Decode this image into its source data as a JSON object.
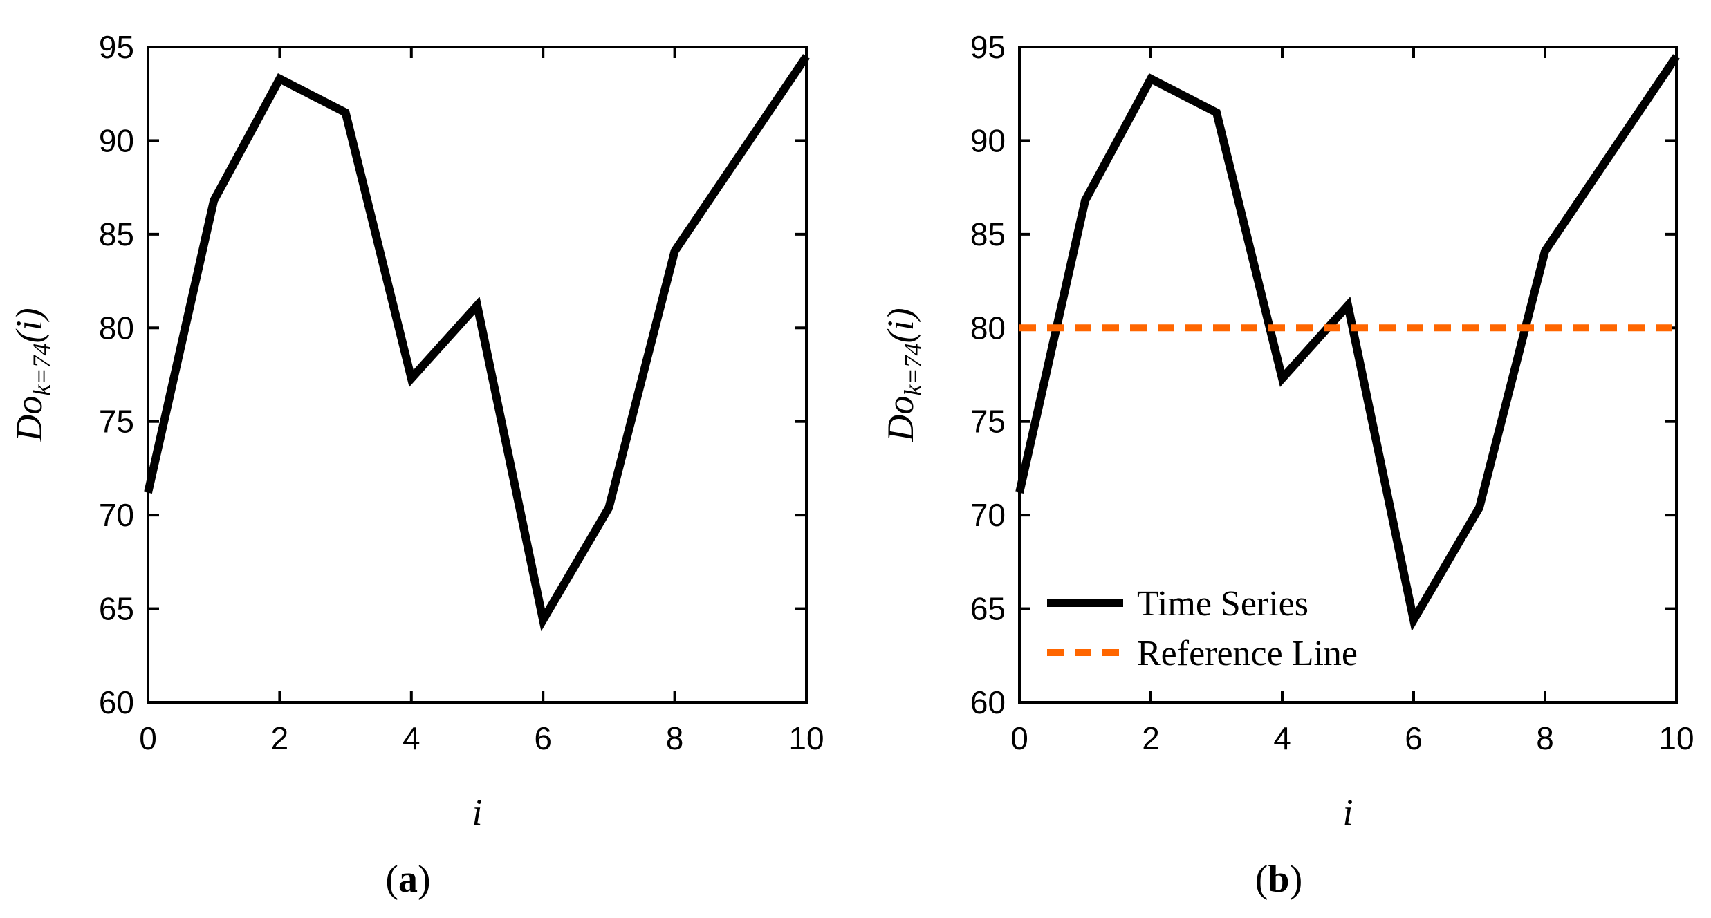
{
  "chart_data": [
    {
      "type": "line",
      "panel_label": "a",
      "title": "",
      "xlabel": "i",
      "ylabel": {
        "base": "Do",
        "subscript": "k=74",
        "suffix": "(i)"
      },
      "xlim": [
        0,
        10
      ],
      "ylim": [
        60,
        95
      ],
      "xticks": [
        0,
        2,
        4,
        6,
        8,
        10
      ],
      "yticks": [
        60,
        65,
        70,
        75,
        80,
        85,
        90,
        95
      ],
      "grid": false,
      "series": [
        {
          "name": "Time Series",
          "color": "#000000",
          "style": "solid",
          "x": [
            0,
            1,
            2,
            3,
            4,
            5,
            6,
            7,
            8,
            9,
            10
          ],
          "values": [
            71.2,
            86.8,
            93.3,
            91.5,
            77.3,
            81.2,
            64.4,
            70.4,
            84.1,
            89.3,
            94.5
          ]
        }
      ]
    },
    {
      "type": "line",
      "panel_label": "b",
      "title": "",
      "xlabel": "i",
      "ylabel": {
        "base": "Do",
        "subscript": "k=74",
        "suffix": "(i)"
      },
      "xlim": [
        0,
        10
      ],
      "ylim": [
        60,
        95
      ],
      "xticks": [
        0,
        2,
        4,
        6,
        8,
        10
      ],
      "yticks": [
        60,
        65,
        70,
        75,
        80,
        85,
        90,
        95
      ],
      "grid": false,
      "legend_position": "bottom-left",
      "series": [
        {
          "name": "Time Series",
          "color": "#000000",
          "style": "solid",
          "x": [
            0,
            1,
            2,
            3,
            4,
            5,
            6,
            7,
            8,
            9,
            10
          ],
          "values": [
            71.2,
            86.8,
            93.3,
            91.5,
            77.3,
            81.2,
            64.4,
            70.4,
            84.1,
            89.3,
            94.5
          ]
        },
        {
          "name": "Reference Line",
          "color": "#ff6600",
          "style": "dashed",
          "x": [
            0,
            10
          ],
          "values": [
            80,
            80
          ]
        }
      ]
    }
  ]
}
